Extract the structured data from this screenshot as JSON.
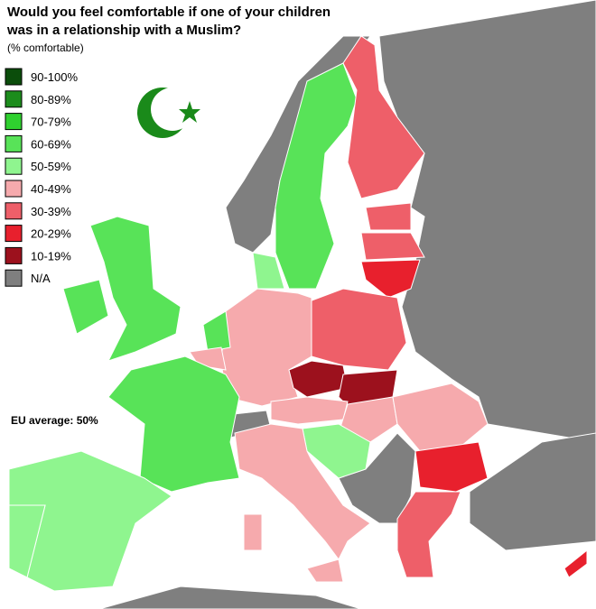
{
  "header": {
    "title_line1": "Would you feel comfortable if one of your children",
    "title_line2": "was in a relationship with a Muslim?",
    "subtitle": "(% comfortable)"
  },
  "legend": {
    "items": [
      {
        "label": "90-100%",
        "color": "#0b4d0b"
      },
      {
        "label": "80-89%",
        "color": "#1c8c1c"
      },
      {
        "label": "70-79%",
        "color": "#2fd02f"
      },
      {
        "label": "60-69%",
        "color": "#58e358"
      },
      {
        "label": "50-59%",
        "color": "#8ff58f"
      },
      {
        "label": "40-49%",
        "color": "#f6aaad"
      },
      {
        "label": "30-39%",
        "color": "#ee5f69"
      },
      {
        "label": "20-29%",
        "color": "#e8202d"
      },
      {
        "label": "10-19%",
        "color": "#9c111d"
      },
      {
        "label": "N/A",
        "color": "#7f7f7f"
      }
    ]
  },
  "annotation": "EU average: 50%"
}
